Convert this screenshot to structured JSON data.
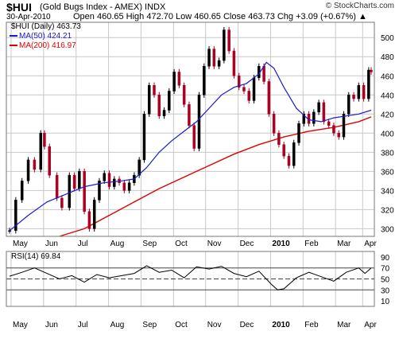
{
  "header": {
    "symbol": "$HUI",
    "description": "(Gold Bugs Index - AMEX) INDX",
    "date": "30-Apr-2010",
    "ohlc": "Open 460.65  High 472.70  Low 460.65  Close 463.73  Chg +3.09 (+0.67%) ▲",
    "watermark": "© StockCharts.com"
  },
  "legend": {
    "price": "$HUI (Daily) 463.73",
    "ma50": "MA(50) 424.21",
    "ma200": "MA(200) 416.97",
    "rsi": "RSI(14) 69.84"
  },
  "colors": {
    "price": "#000000",
    "ma50": "#1a1acc",
    "ma200": "#e00000",
    "down": "#aa0022",
    "grid": "#c8c8c8"
  },
  "chart_data": [
    {
      "type": "line",
      "subtype": "candlestick",
      "x_labels": [
        "May",
        "Jun",
        "Jul",
        "Aug",
        "Sep",
        "Oct",
        "Nov",
        "Dec",
        "2010",
        "Feb",
        "Mar",
        "Apr"
      ],
      "y_ticks": [
        300,
        320,
        340,
        360,
        380,
        400,
        420,
        440,
        460,
        480,
        500
      ],
      "ylim": [
        292,
        516
      ],
      "grid": true,
      "legend_position": "top-left",
      "series": [
        {
          "name": "$HUI (Daily)",
          "values": [
            [
              0,
              298
            ],
            [
              5,
              330
            ],
            [
              10,
              350
            ],
            [
              15,
              372
            ],
            [
              20,
              362
            ],
            [
              25,
              400
            ],
            [
              28,
              386
            ],
            [
              32,
              356
            ],
            [
              38,
              332
            ],
            [
              42,
              322
            ],
            [
              48,
              356
            ],
            [
              52,
              342
            ],
            [
              56,
              360
            ],
            [
              60,
              318
            ],
            [
              64,
              300
            ],
            [
              68,
              330
            ],
            [
              72,
              350
            ],
            [
              76,
              358
            ],
            [
              80,
              344
            ],
            [
              84,
              352
            ],
            [
              88,
              348
            ],
            [
              92,
              340
            ],
            [
              96,
              348
            ],
            [
              100,
              356
            ],
            [
              104,
              372
            ],
            [
              108,
              420
            ],
            [
              112,
              450
            ],
            [
              116,
              440
            ],
            [
              120,
              418
            ],
            [
              124,
              424
            ],
            [
              128,
              444
            ],
            [
              132,
              464
            ],
            [
              136,
              450
            ],
            [
              140,
              430
            ],
            [
              144,
              408
            ],
            [
              148,
              384
            ],
            [
              152,
              440
            ],
            [
              156,
              470
            ],
            [
              160,
              488
            ],
            [
              164,
              470
            ],
            [
              168,
              476
            ],
            [
              172,
              508
            ],
            [
              176,
              486
            ],
            [
              180,
              460
            ],
            [
              184,
              448
            ],
            [
              188,
              444
            ],
            [
              192,
              434
            ],
            [
              196,
              458
            ],
            [
              200,
              470
            ],
            [
              204,
              454
            ],
            [
              208,
              420
            ],
            [
              212,
              400
            ],
            [
              216,
              388
            ],
            [
              220,
              376
            ],
            [
              224,
              366
            ],
            [
              228,
              390
            ],
            [
              232,
              410
            ],
            [
              236,
              420
            ],
            [
              240,
              410
            ],
            [
              244,
              422
            ],
            [
              248,
              432
            ],
            [
              252,
              412
            ],
            [
              256,
              408
            ],
            [
              260,
              400
            ],
            [
              264,
              396
            ],
            [
              268,
              420
            ],
            [
              272,
              440
            ],
            [
              276,
              436
            ],
            [
              280,
              450
            ],
            [
              284,
              436
            ],
            [
              288,
              466
            ],
            [
              290,
              464
            ]
          ]
        },
        {
          "name": "MA(50)",
          "values": [
            [
              0,
              298
            ],
            [
              15,
              314
            ],
            [
              30,
              328
            ],
            [
              45,
              336
            ],
            [
              60,
              344
            ],
            [
              75,
              348
            ],
            [
              90,
              350
            ],
            [
              100,
              352
            ],
            [
              110,
              364
            ],
            [
              120,
              380
            ],
            [
              130,
              392
            ],
            [
              140,
              402
            ],
            [
              150,
              412
            ],
            [
              160,
              426
            ],
            [
              170,
              440
            ],
            [
              180,
              448
            ],
            [
              190,
              452
            ],
            [
              200,
              462
            ],
            [
              206,
              474
            ],
            [
              212,
              468
            ],
            [
              220,
              448
            ],
            [
              230,
              426
            ],
            [
              240,
              414
            ],
            [
              250,
              412
            ],
            [
              260,
              416
            ],
            [
              270,
              418
            ],
            [
              280,
              420
            ],
            [
              290,
              424
            ]
          ]
        },
        {
          "name": "MA(200)",
          "values": [
            [
              40,
              292
            ],
            [
              60,
              300
            ],
            [
              80,
              314
            ],
            [
              100,
              328
            ],
            [
              120,
              342
            ],
            [
              140,
              354
            ],
            [
              160,
              366
            ],
            [
              180,
              378
            ],
            [
              200,
              388
            ],
            [
              220,
              396
            ],
            [
              240,
              402
            ],
            [
              260,
              406
            ],
            [
              280,
              412
            ],
            [
              290,
              417
            ]
          ]
        }
      ]
    },
    {
      "type": "line",
      "y_ticks": [
        10,
        30,
        50,
        70,
        90
      ],
      "ylim": [
        0,
        100
      ],
      "reference_lines": [
        30,
        50,
        70
      ],
      "series": [
        {
          "name": "RSI(14)",
          "values": [
            [
              0,
              55
            ],
            [
              10,
              62
            ],
            [
              20,
              70
            ],
            [
              30,
              60
            ],
            [
              40,
              50
            ],
            [
              50,
              56
            ],
            [
              60,
              44
            ],
            [
              70,
              58
            ],
            [
              80,
              52
            ],
            [
              90,
              56
            ],
            [
              100,
              60
            ],
            [
              110,
              74
            ],
            [
              120,
              62
            ],
            [
              130,
              66
            ],
            [
              140,
              52
            ],
            [
              150,
              72
            ],
            [
              160,
              68
            ],
            [
              170,
              73
            ],
            [
              180,
              60
            ],
            [
              190,
              54
            ],
            [
              200,
              64
            ],
            [
              210,
              40
            ],
            [
              215,
              30
            ],
            [
              220,
              32
            ],
            [
              230,
              52
            ],
            [
              240,
              62
            ],
            [
              250,
              54
            ],
            [
              260,
              46
            ],
            [
              270,
              62
            ],
            [
              280,
              70
            ],
            [
              285,
              60
            ],
            [
              290,
              70
            ]
          ]
        }
      ]
    }
  ]
}
